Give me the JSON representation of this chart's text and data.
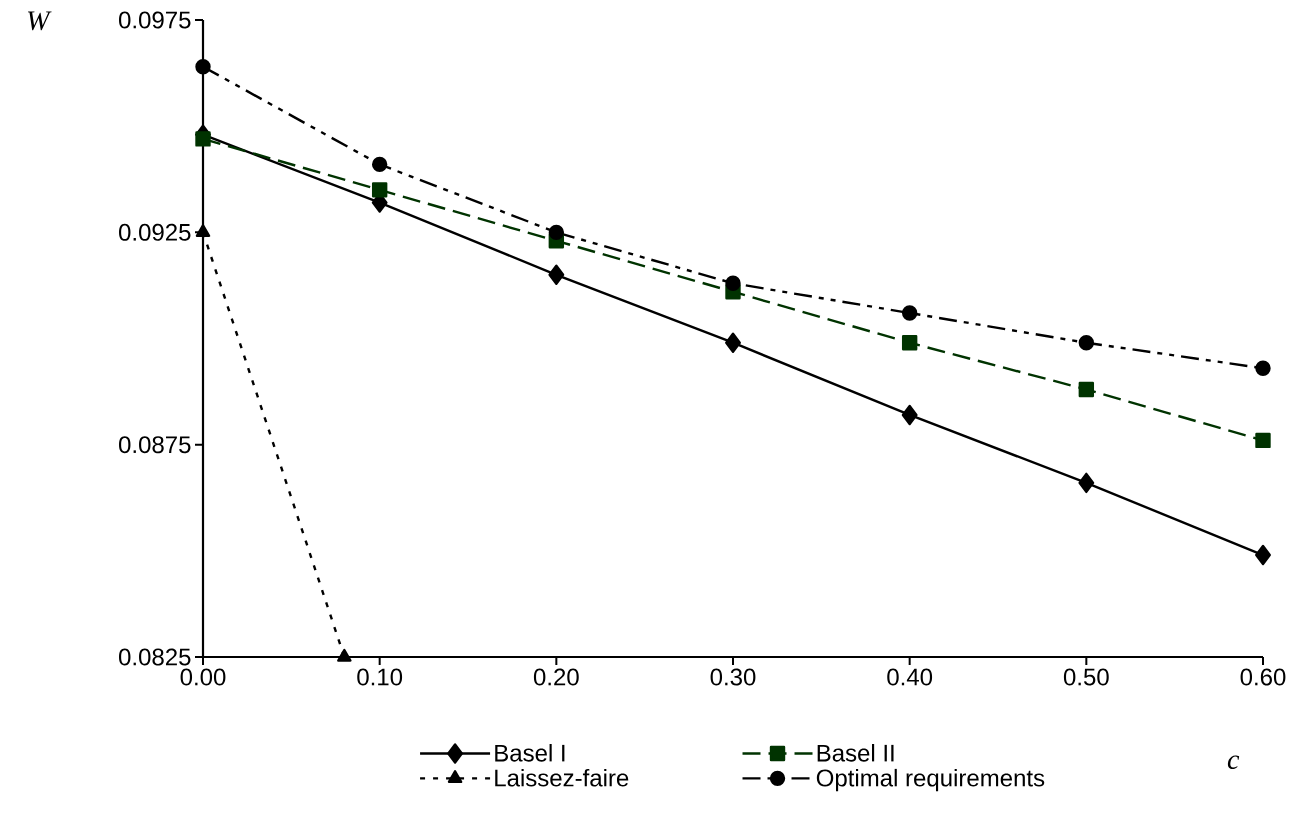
{
  "chart_data": {
    "type": "line",
    "xlabel": "c",
    "ylabel": "W",
    "x": [
      0.0,
      0.1,
      0.2,
      0.3,
      0.4,
      0.5,
      0.6
    ],
    "series": [
      {
        "name": "Basel I",
        "color": "#000000",
        "marker": "diamond",
        "line_style": "solid",
        "values": [
          0.0948,
          0.0932,
          0.0915,
          0.0899,
          0.0882,
          0.0866,
          0.0849
        ]
      },
      {
        "name": "Basel II",
        "color": "#003300",
        "marker": "square",
        "line_style": "dashed",
        "values": [
          0.0947,
          0.0935,
          0.0923,
          0.0911,
          0.0899,
          0.0888,
          0.0876
        ]
      },
      {
        "name": "Laissez-faire",
        "color": "#000000",
        "marker": "triangle",
        "line_style": "dotted",
        "x": [
          0.0,
          0.08
        ],
        "values": [
          0.0925,
          0.0825
        ]
      },
      {
        "name": "Optimal requirements",
        "color": "#000000",
        "marker": "circle",
        "line_style": "dashdot",
        "values": [
          0.0964,
          0.0941,
          0.0925,
          0.0913,
          0.0906,
          0.0899,
          0.0893
        ]
      }
    ],
    "xlim": [
      0,
      0.6
    ],
    "ylim": [
      0.0825,
      0.0975
    ],
    "xticks": [
      {
        "value": 0,
        "label": "0.00"
      },
      {
        "value": 0.1,
        "label": "0.10"
      },
      {
        "value": 0.2,
        "label": "0.20"
      },
      {
        "value": 0.3,
        "label": "0.30"
      },
      {
        "value": 0.4,
        "label": "0.40"
      },
      {
        "value": 0.5,
        "label": "0.50"
      },
      {
        "value": 0.6,
        "label": "0.60"
      }
    ],
    "yticks": [
      0.0825,
      0.0875,
      0.0925,
      0.0975
    ],
    "grid": false,
    "legend": "bottom"
  }
}
